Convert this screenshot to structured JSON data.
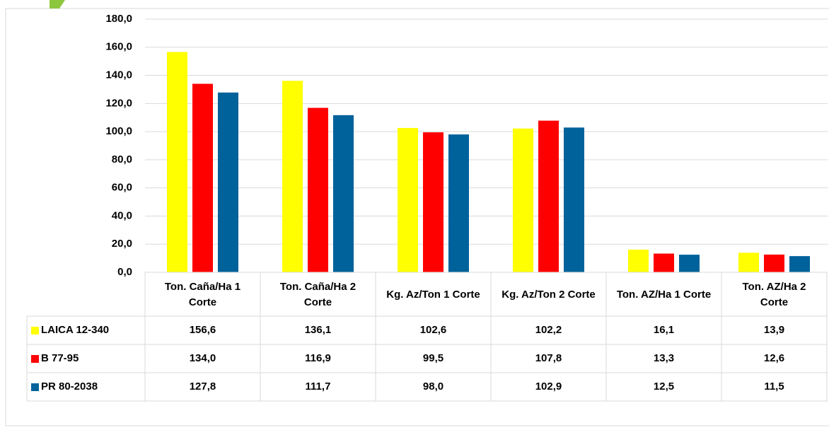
{
  "chart_data": {
    "type": "bar",
    "categories": [
      "Ton. Caña/Ha 1 Corte",
      "Ton. Caña/Ha 2 Corte",
      "Kg. Az/Ton 1 Corte",
      "Kg. Az/Ton 2 Corte",
      "Ton. AZ/Ha 1 Corte",
      "Ton. AZ/Ha 2 Corte"
    ],
    "series": [
      {
        "name": "LAICA 12-340",
        "color": "#ffff00",
        "values": [
          156.6,
          136.1,
          102.6,
          102.2,
          16.1,
          13.9
        ],
        "value_labels": [
          "156,6",
          "136,1",
          "102,6",
          "102,2",
          "16,1",
          "13,9"
        ]
      },
      {
        "name": "B 77-95",
        "color": "#ff0000",
        "values": [
          134.0,
          116.9,
          99.5,
          107.8,
          13.3,
          12.6
        ],
        "value_labels": [
          "134,0",
          "116,9",
          "99,5",
          "107,8",
          "13,3",
          "12,6"
        ]
      },
      {
        "name": "PR 80-2038",
        "color": "#00629b",
        "values": [
          127.8,
          111.7,
          98.0,
          102.9,
          12.5,
          11.5
        ],
        "value_labels": [
          "127,8",
          "111,7",
          "98,0",
          "102,9",
          "12,5",
          "11,5"
        ]
      }
    ],
    "ylim": [
      0,
      180
    ],
    "yticks": [
      {
        "value": 0,
        "label": "0,0"
      },
      {
        "value": 20,
        "label": "20,0"
      },
      {
        "value": 40,
        "label": "40,0"
      },
      {
        "value": 60,
        "label": "60,0"
      },
      {
        "value": 80,
        "label": "80,0"
      },
      {
        "value": 100,
        "label": "100,0"
      },
      {
        "value": 120,
        "label": "120,0"
      },
      {
        "value": 140,
        "label": "140,0"
      },
      {
        "value": 160,
        "label": "160,0"
      },
      {
        "value": 180,
        "label": "180,0"
      }
    ],
    "grid": true
  }
}
